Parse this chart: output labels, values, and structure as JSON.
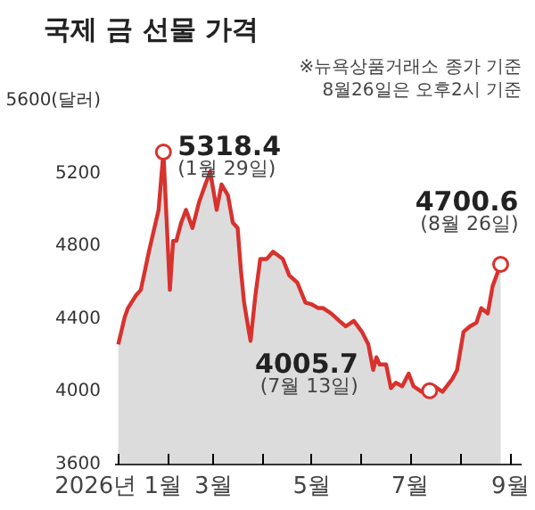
{
  "chart_data": {
    "type": "area",
    "title": "국제 금 선물 가격",
    "x": [
      "2026-01-01",
      "2026-01-05",
      "2026-01-07",
      "2026-01-12",
      "2026-01-15",
      "2026-01-20",
      "2026-01-26",
      "2026-01-29",
      "2026-02-02",
      "2026-02-04",
      "2026-02-06",
      "2026-02-09",
      "2026-02-12",
      "2026-02-16",
      "2026-02-20",
      "2026-02-24",
      "2026-02-27",
      "2026-03-03",
      "2026-03-06",
      "2026-03-10",
      "2026-03-13",
      "2026-03-16",
      "2026-03-18",
      "2026-03-20",
      "2026-03-23",
      "2026-03-24",
      "2026-03-27",
      "2026-03-30",
      "2026-04-03",
      "2026-04-07",
      "2026-04-13",
      "2026-04-17",
      "2026-04-22",
      "2026-04-27",
      "2026-05-01",
      "2026-05-05",
      "2026-05-08",
      "2026-05-13",
      "2026-05-18",
      "2026-05-22",
      "2026-05-27",
      "2026-06-01",
      "2026-06-05",
      "2026-06-08",
      "2026-06-10",
      "2026-06-12",
      "2026-06-16",
      "2026-06-19",
      "2026-06-22",
      "2026-06-26",
      "2026-06-30",
      "2026-07-03",
      "2026-07-08",
      "2026-07-13",
      "2026-07-16",
      "2026-07-21",
      "2026-07-27",
      "2026-07-30",
      "2026-08-03",
      "2026-08-07",
      "2026-08-11",
      "2026-08-14",
      "2026-08-18",
      "2026-08-21",
      "2026-08-26"
    ],
    "series": [
      {
        "color": "#d8322e",
        "values": [
          4260,
          4410,
          4460,
          4530,
          4560,
          4770,
          5000,
          5318.4,
          4560,
          4830,
          4830,
          4930,
          5000,
          4900,
          5040,
          5140,
          5210,
          5000,
          5140,
          5080,
          4930,
          4900,
          4670,
          4490,
          4330,
          4280,
          4530,
          4730,
          4730,
          4770,
          4730,
          4640,
          4600,
          4490,
          4480,
          4460,
          4460,
          4430,
          4390,
          4360,
          4390,
          4330,
          4260,
          4120,
          4190,
          4150,
          4150,
          4020,
          4050,
          4030,
          4100,
          4030,
          4000,
          4005.7,
          4030,
          4000,
          4070,
          4120,
          4330,
          4360,
          4380,
          4460,
          4430,
          4580,
          4700.6
        ]
      }
    ],
    "xlim": [
      "2025-12-30",
      "2026-09-08"
    ],
    "xticks": [
      {
        "value": "2026-01-01",
        "label": "2026년 1월"
      },
      {
        "value": "2026-02-01",
        "label": null
      },
      {
        "value": "2026-03-01",
        "label": "3월"
      },
      {
        "value": "2026-04-01",
        "label": null
      },
      {
        "value": "2026-05-01",
        "label": "5월"
      },
      {
        "value": "2026-06-01",
        "label": null
      },
      {
        "value": "2026-07-01",
        "label": "7월"
      },
      {
        "value": "2026-08-01",
        "label": null
      },
      {
        "value": "2026-09-01",
        "label": "9월"
      }
    ],
    "ylim": [
      3600,
      5600
    ],
    "yticks": [
      3600,
      4000,
      4400,
      4800,
      5200,
      {
        "value": 5600,
        "label": "5600(달러)"
      }
    ],
    "grid": false,
    "annotations": [
      {
        "text": "5318.4\n(1월 29일)",
        "x": "2026-01-29",
        "y": 5318.4
      },
      {
        "text": "4005.7\n(7월 13일)",
        "x": "2026-07-13",
        "y": 4005.7
      },
      {
        "text": "4700.6\n(8월 26일)",
        "x": "2026-08-26",
        "y": 4700.6
      },
      "※뉴욕상품거래소 종가 기준",
      "8월26일은 오후2시 기준"
    ]
  }
}
